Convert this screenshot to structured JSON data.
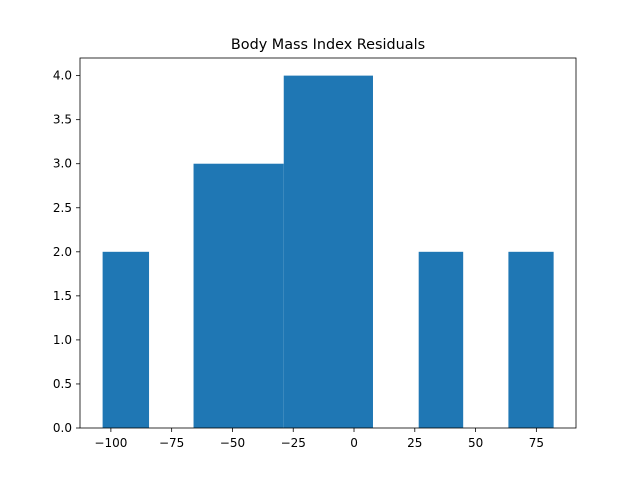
{
  "chart_data": {
    "type": "bar",
    "title": "Body Mass Index Residuals",
    "xlabel": "",
    "ylabel": "",
    "bins": [
      {
        "x0": -103.4,
        "x1": -84.3,
        "count": 2
      },
      {
        "x0": -84.3,
        "x1": -66.0,
        "count": 0
      },
      {
        "x0": -66.0,
        "x1": -28.9,
        "count": 3
      },
      {
        "x0": -28.9,
        "x1": 7.8,
        "count": 4
      },
      {
        "x0": 7.8,
        "x1": 26.6,
        "count": 0
      },
      {
        "x0": 26.6,
        "x1": 44.9,
        "count": 2
      },
      {
        "x0": 44.9,
        "x1": 63.5,
        "count": 0
      },
      {
        "x0": 63.5,
        "x1": 82.1,
        "count": 2
      }
    ],
    "xlim": [
      -112.7,
      91.3
    ],
    "ylim": [
      0,
      4.2
    ],
    "xticks": [
      -100,
      -75,
      -50,
      -25,
      0,
      25,
      50,
      75
    ],
    "xtick_labels": [
      "−100",
      "−75",
      "−50",
      "−25",
      "0",
      "25",
      "50",
      "75"
    ],
    "yticks": [
      0.0,
      0.5,
      1.0,
      1.5,
      2.0,
      2.5,
      3.0,
      3.5,
      4.0
    ],
    "ytick_labels": [
      "0.0",
      "0.5",
      "1.0",
      "1.5",
      "2.0",
      "2.5",
      "3.0",
      "3.5",
      "4.0"
    ],
    "grid": false,
    "bar_color": "#1f77b4"
  }
}
